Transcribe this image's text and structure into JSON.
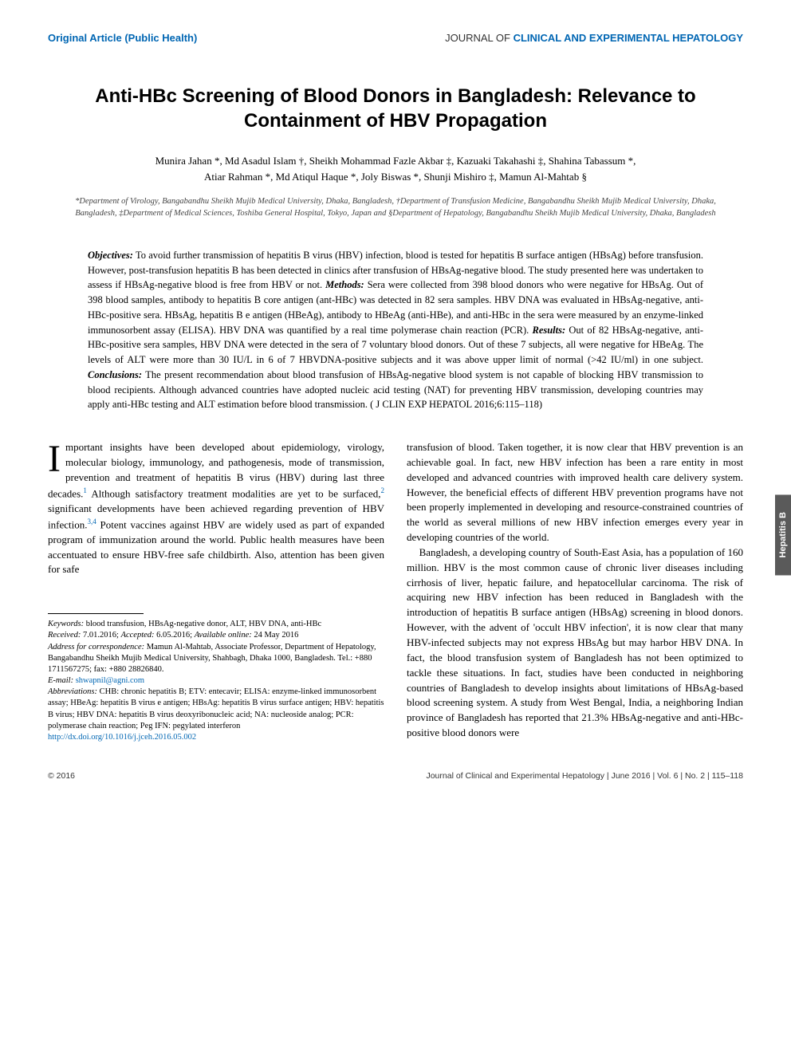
{
  "header": {
    "category": "Original Article (Public Health)",
    "journal_prefix": "JOURNAL OF ",
    "journal_bold": "CLINICAL AND EXPERIMENTAL HEPATOLOGY"
  },
  "title": "Anti-HBc Screening of Blood Donors in Bangladesh: Relevance to Containment of HBV Propagation",
  "authors_line1": "Munira Jahan *, Md Asadul Islam †, Sheikh Mohammad Fazle Akbar ‡, Kazuaki Takahashi ‡, Shahina Tabassum *,",
  "authors_line2": "Atiar Rahman *, Md Atiqul Haque *, Joly Biswas *, Shunji Mishiro ‡, Mamun Al-Mahtab §",
  "affiliations": "*Department of Virology, Bangabandhu Sheikh Mujib Medical University, Dhaka, Bangladesh, †Department of Transfusion Medicine, Bangabandhu Sheikh Mujib Medical University, Dhaka, Bangladesh, ‡Department of Medical Sciences, Toshiba General Hospital, Tokyo, Japan and §Department of Hepatology, Bangabandhu Sheikh Mujib Medical University, Dhaka, Bangladesh",
  "abstract": {
    "objectives_label": "Objectives:",
    "objectives_text": " To avoid further transmission of hepatitis B virus (HBV) infection, blood is tested for hepatitis B surface antigen (HBsAg) before transfusion. However, post-transfusion hepatitis B has been detected in clinics after transfusion of HBsAg-negative blood. The study presented here was undertaken to assess if HBsAg-negative blood is free from HBV or not. ",
    "methods_label": "Methods:",
    "methods_text": " Sera were collected from 398 blood donors who were negative for HBsAg. Out of 398 blood samples, antibody to hepatitis B core antigen (ant-HBc) was detected in 82 sera samples. HBV DNA was evaluated in HBsAg-negative, anti-HBc-positive sera. HBsAg, hepatitis B e antigen (HBeAg), antibody to HBeAg (anti-HBe), and anti-HBc in the sera were measured by an enzyme-linked immunosorbent assay (ELISA). HBV DNA was quantified by a real time polymerase chain reaction (PCR). ",
    "results_label": "Results:",
    "results_text": " Out of 82 HBsAg-negative, anti-HBc-positive sera samples, HBV DNA were detected in the sera of 7 voluntary blood donors. Out of these 7 subjects, all were negative for HBeAg. The levels of ALT were more than 30 IU/L in 6 of 7 HBVDNA-positive subjects and it was above upper limit of normal (>42 IU/ml) in one subject. ",
    "conclusions_label": "Conclusions:",
    "conclusions_text": " The present recommendation about blood transfusion of HBsAg-negative blood system is not capable of blocking HBV transmission to blood recipients. Although advanced countries have adopted nucleic acid testing (NAT) for preventing HBV transmission, developing countries may apply anti-HBc testing and ALT estimation before blood transmission.   ",
    "citation": "( J CLIN EXP HEPATOL 2016;6:115–118)"
  },
  "body": {
    "col1_p1_dropcap": "I",
    "col1_p1": "mportant insights have been developed about epidemiology, virology, molecular biology, immunology, and pathogenesis, mode of transmission, prevention and treatment of hepatitis B virus (HBV) during last three decades.",
    "col1_p1_ref1": "1",
    "col1_p1_cont": " Although satisfactory treatment modalities are yet to be surfaced,",
    "col1_p1_ref2": "2",
    "col1_p1_cont2": " significant developments have been achieved regarding prevention of HBV infection.",
    "col1_p1_ref3": "3,4",
    "col1_p1_cont3": " Potent vaccines against HBV are widely used as part of expanded program of immunization around the world. Public health measures have been accentuated to ensure HBV-free safe childbirth. Also, attention has been given for safe",
    "col2_p1": "transfusion of blood. Taken together, it is now clear that HBV prevention is an achievable goal. In fact, new HBV infection has been a rare entity in most developed and advanced countries with improved health care delivery system. However, the beneficial effects of different HBV prevention programs have not been properly implemented in developing and resource-constrained countries of the world as several millions of new HBV infection emerges every year in developing countries of the world.",
    "col2_p2": "Bangladesh, a developing country of South-East Asia, has a population of 160 million. HBV is the most common cause of chronic liver diseases including cirrhosis of liver, hepatic failure, and hepatocellular carcinoma. The risk of acquiring new HBV infection has been reduced in Bangladesh with the introduction of hepatitis B surface antigen (HBsAg) screening in blood donors. However, with the advent of 'occult HBV infection', it is now clear that many HBV-infected subjects may not express HBsAg but may harbor HBV DNA. In fact, the blood transfusion system of Bangladesh has not been optimized to tackle these situations. In fact, studies have been conducted in neighboring countries of Bangladesh to develop insights about limitations of HBsAg-based blood screening system. A study from West Bengal, India, a neighboring Indian province of Bangladesh has reported that 21.3% HBsAg-negative and anti-HBc-positive blood donors were"
  },
  "footnotes": {
    "keywords_label": "Keywords:",
    "keywords": " blood transfusion, HBsAg-negative donor, ALT, HBV DNA, anti-HBc",
    "received_label": "Received:",
    "received": " 7.01.2016; ",
    "accepted_label": "Accepted:",
    "accepted": " 6.05.2016; ",
    "available_label": "Available online:",
    "available": " 24 May 2016",
    "address_label": "Address for correspondence:",
    "address": " Mamun Al-Mahtab, Associate Professor, Department of Hepatology, Bangabandhu Sheikh Mujib Medical University, Shahbagh, Dhaka 1000, Bangladesh. Tel.: +880 1711567275; fax: +880 28826840.",
    "email_label": "E-mail:",
    "email": "shwapnil@agni.com",
    "abbrev_label": "Abbreviations:",
    "abbrev": " CHB: chronic hepatitis B; ETV: entecavir; ELISA: enzyme-linked immunosorbent assay; HBeAg: hepatitis B virus e antigen; HBsAg: hepatitis B virus surface antigen; HBV: hepatitis B virus; HBV DNA: hepatitis B virus deoxyribonucleic acid; NA: nucleoside analog; PCR: polymerase chain reaction; Peg IFN: pegylated interferon",
    "doi": "http://dx.doi.org/10.1016/j.jceh.2016.05.002"
  },
  "side_tab": "Hepatitis B",
  "footer": {
    "copyright": "© 2016",
    "citation": "Journal of Clinical and Experimental Hepatology | June 2016 | Vol. 6 | No. 2 | 115–118"
  },
  "colors": {
    "brand_blue": "#0066b3",
    "tab_gray": "#5a5a5a",
    "text": "#000000",
    "muted": "#444444"
  },
  "typography": {
    "title_fontsize": 24,
    "body_fontsize": 13,
    "abstract_fontsize": 12.5,
    "footnote_fontsize": 10.5,
    "affiliation_fontsize": 10.5
  }
}
